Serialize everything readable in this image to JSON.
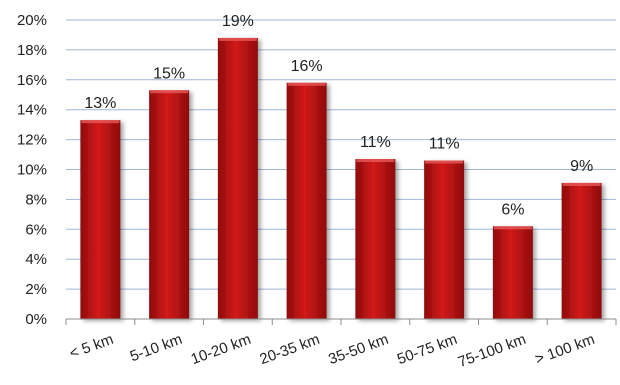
{
  "chart_data": {
    "type": "bar",
    "title": "",
    "xlabel": "",
    "ylabel": "",
    "categories": [
      "< 5 km",
      "5-10 km",
      "10-20 km",
      "20-35 km",
      "35-50 km",
      "50-75 km",
      "75-100 km",
      "> 100 km"
    ],
    "values": [
      13.3,
      15.3,
      18.8,
      15.8,
      10.7,
      10.6,
      6.2,
      9.1
    ],
    "data_labels": [
      "13%",
      "15%",
      "19%",
      "16%",
      "11%",
      "11%",
      "6%",
      "9%"
    ],
    "ylim": [
      0,
      20
    ],
    "y_ticks": [
      0,
      2,
      4,
      6,
      8,
      10,
      12,
      14,
      16,
      18,
      20
    ],
    "y_tick_labels": [
      "0%",
      "2%",
      "4%",
      "6%",
      "8%",
      "10%",
      "12%",
      "14%",
      "16%",
      "18%",
      "20%"
    ],
    "grid": true,
    "legend": "none",
    "colors": {
      "bar_light": "#d21a1a",
      "bar_dark": "#8e0b0b",
      "bar_top": "#e85a5a",
      "grid": "#9fb7d8",
      "axis": "#8c8c8c",
      "text": "#222222"
    }
  }
}
